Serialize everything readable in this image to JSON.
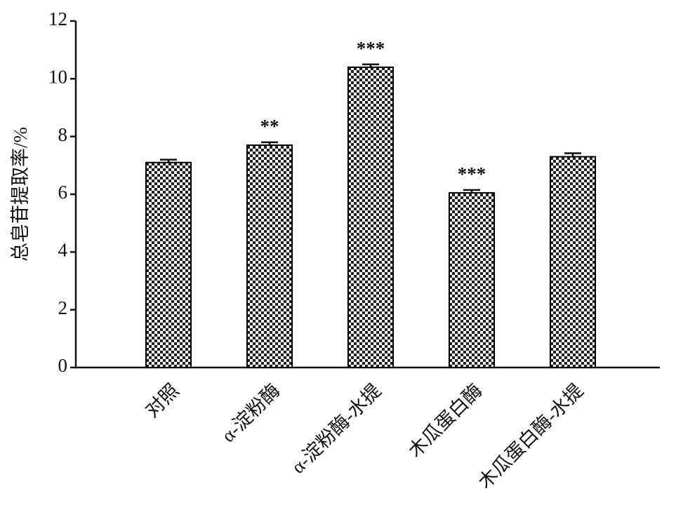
{
  "chart_data": {
    "type": "bar",
    "y_label": "总皂苷提取率/%",
    "categories": [
      "对照",
      "α-淀粉酶",
      "α-淀粉酶-水提",
      "木瓜蛋白酶",
      "木瓜蛋白酶-水提"
    ],
    "values": [
      7.1,
      7.7,
      10.4,
      6.05,
      7.3
    ],
    "errors": [
      0.1,
      0.1,
      0.1,
      0.1,
      0.12
    ],
    "annotations": [
      null,
      "**",
      "***",
      "***",
      null
    ],
    "color": "#000000",
    "ylim": [
      0,
      12
    ],
    "yticks": [
      0,
      2,
      4,
      6,
      8,
      10,
      12
    ],
    "grid": false
  }
}
